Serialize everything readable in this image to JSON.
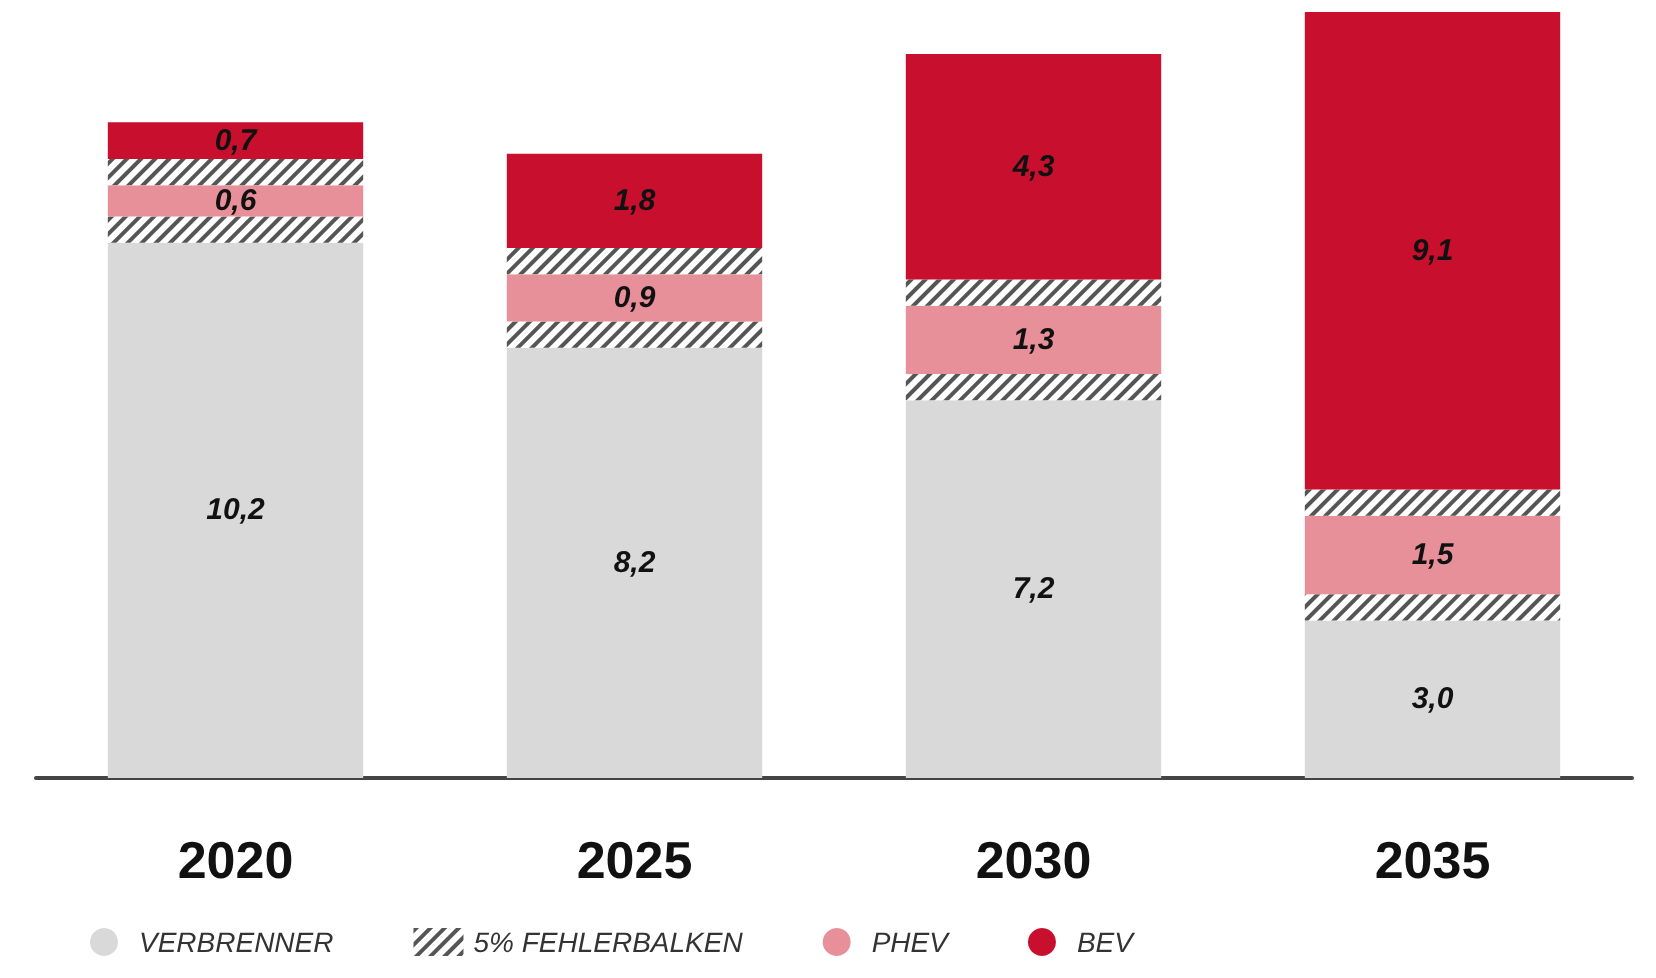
{
  "chart_data": {
    "type": "bar",
    "stacked": true,
    "categories": [
      "2020",
      "2025",
      "2030",
      "2035"
    ],
    "series": [
      {
        "name": "VERBRENNER",
        "color": "#d9d9d9",
        "values": [
          10.2,
          8.2,
          7.2,
          3.0
        ],
        "value_labels": [
          "10,2",
          "8,2",
          "7,2",
          "3,0"
        ]
      },
      {
        "name": "5% FEHLERBALKEN",
        "color": "#555555",
        "values": [
          0.5,
          0.5,
          0.5,
          0.5
        ]
      },
      {
        "name": "PHEV",
        "color": "#e8909a",
        "values": [
          0.6,
          0.9,
          1.3,
          1.5
        ],
        "value_labels": [
          "0,6",
          "0,9",
          "1,3",
          "1,5"
        ]
      },
      {
        "color": "#555555",
        "values": [
          0.5,
          0.5,
          0.5,
          0.5
        ]
      },
      {
        "name": "BEV",
        "color": "#c8102e",
        "values": [
          0.7,
          1.8,
          4.3,
          9.1
        ],
        "value_labels": [
          "0,7",
          "1,8",
          "4,3",
          "9,1"
        ]
      }
    ],
    "legend": "bottom"
  }
}
